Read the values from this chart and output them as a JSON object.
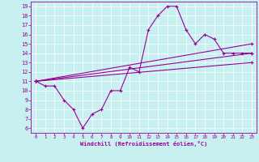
{
  "bg_color": "#c8f0f0",
  "line_color": "#990099",
  "xlim": [
    -0.5,
    23.5
  ],
  "ylim": [
    5.5,
    19.5
  ],
  "xticks": [
    0,
    1,
    2,
    3,
    4,
    5,
    6,
    7,
    8,
    9,
    10,
    11,
    12,
    13,
    14,
    15,
    16,
    17,
    18,
    19,
    20,
    21,
    22,
    23
  ],
  "yticks": [
    6,
    7,
    8,
    9,
    10,
    11,
    12,
    13,
    14,
    15,
    16,
    17,
    18,
    19
  ],
  "xlabel": "Windchill (Refroidissement éolien,°C)",
  "series1_x": [
    0,
    1,
    2,
    3,
    4,
    5,
    6,
    7,
    8,
    9,
    10,
    11,
    12,
    13,
    14,
    15,
    16,
    17,
    18,
    19,
    20,
    21,
    22,
    23
  ],
  "series1_y": [
    11,
    10.5,
    10.5,
    9,
    8,
    6,
    7.5,
    8,
    10,
    10,
    12.5,
    12,
    16.5,
    18,
    19,
    19,
    16.5,
    15,
    16,
    15.5,
    14,
    14,
    14,
    14
  ],
  "line2_x": [
    0,
    23
  ],
  "line2_y": [
    11,
    14
  ],
  "line3_x": [
    0,
    23
  ],
  "line3_y": [
    11,
    13
  ],
  "line4_x": [
    0,
    23
  ],
  "line4_y": [
    11,
    15
  ]
}
